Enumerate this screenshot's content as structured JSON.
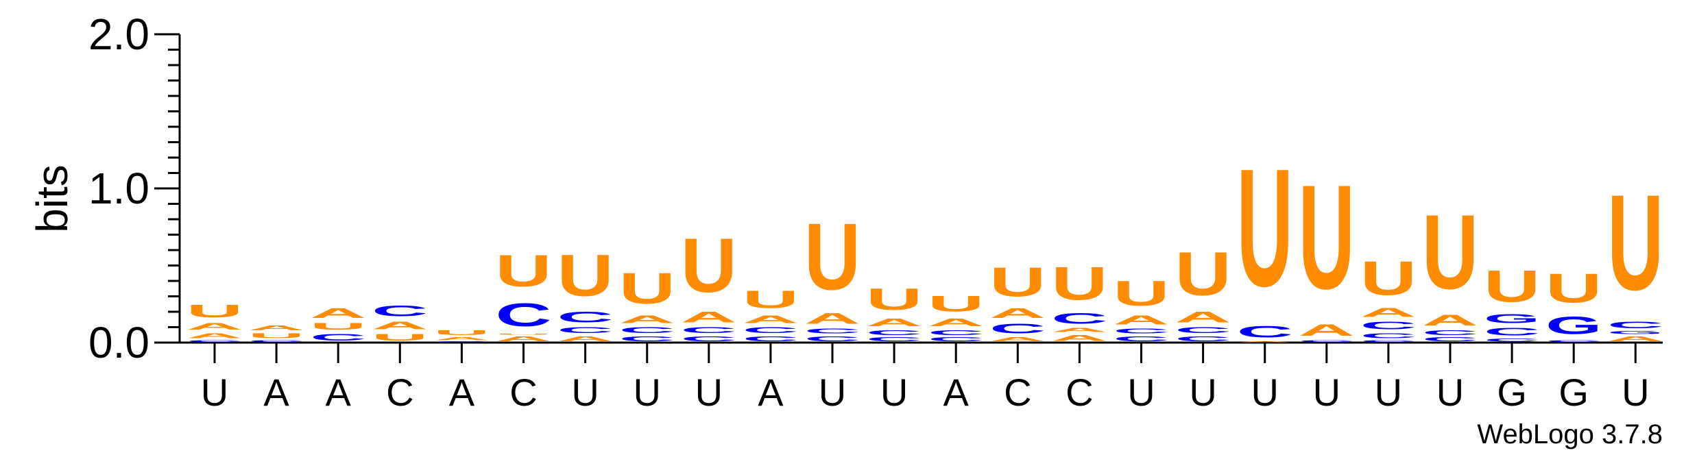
{
  "chart_data": {
    "type": "sequence-logo",
    "ylabel": "bits",
    "ylim": [
      0,
      2.0
    ],
    "yticks": [
      "0.0",
      "1.0",
      "2.0"
    ],
    "x_labels": [
      "U",
      "A",
      "A",
      "C",
      "A",
      "C",
      "U",
      "U",
      "U",
      "A",
      "U",
      "U",
      "A",
      "C",
      "C",
      "U",
      "U",
      "U",
      "U",
      "U",
      "U",
      "G",
      "G",
      "U"
    ],
    "colors": {
      "A": "#ff8c00",
      "U": "#ff8c00",
      "C": "#0000ff",
      "G": "#0000ff"
    },
    "positions": [
      {
        "stack": [
          [
            "C",
            0.02
          ],
          [
            "A",
            0.05
          ],
          [
            "A",
            0.07
          ],
          [
            "U",
            0.13
          ]
        ]
      },
      {
        "stack": [
          [
            "C",
            0.02
          ],
          [
            "U",
            0.05
          ],
          [
            "A",
            0.05
          ]
        ]
      },
      {
        "stack": [
          [
            "C",
            0.07
          ],
          [
            "U",
            0.07
          ],
          [
            "A",
            0.1
          ]
        ]
      },
      {
        "stack": [
          [
            "U",
            0.07
          ],
          [
            "A",
            0.08
          ],
          [
            "C",
            0.11
          ]
        ]
      },
      {
        "stack": [
          [
            "C",
            0.01
          ],
          [
            "A",
            0.03
          ],
          [
            "U",
            0.05
          ]
        ]
      },
      {
        "stack": [
          [
            "A",
            0.05
          ],
          [
            "U",
            0.01
          ],
          [
            "C",
            0.24
          ],
          [
            "U",
            0.33
          ]
        ]
      },
      {
        "stack": [
          [
            "A",
            0.05
          ],
          [
            "C",
            0.06
          ],
          [
            "C",
            0.11
          ],
          [
            "U",
            0.43
          ]
        ]
      },
      {
        "stack": [
          [
            "C",
            0.05
          ],
          [
            "C",
            0.06
          ],
          [
            "A",
            0.08
          ],
          [
            "U",
            0.32
          ]
        ]
      },
      {
        "stack": [
          [
            "C",
            0.05
          ],
          [
            "C",
            0.06
          ],
          [
            "A",
            0.11
          ],
          [
            "U",
            0.56
          ]
        ]
      },
      {
        "stack": [
          [
            "C",
            0.05
          ],
          [
            "C",
            0.06
          ],
          [
            "A",
            0.08
          ],
          [
            "U",
            0.18
          ]
        ]
      },
      {
        "stack": [
          [
            "C",
            0.05
          ],
          [
            "C",
            0.05
          ],
          [
            "A",
            0.11
          ],
          [
            "U",
            0.69
          ]
        ]
      },
      {
        "stack": [
          [
            "C",
            0.04
          ],
          [
            "C",
            0.05
          ],
          [
            "A",
            0.08
          ],
          [
            "U",
            0.22
          ]
        ]
      },
      {
        "stack": [
          [
            "C",
            0.04
          ],
          [
            "C",
            0.05
          ],
          [
            "A",
            0.08
          ],
          [
            "U",
            0.16
          ]
        ]
      },
      {
        "stack": [
          [
            "A",
            0.04
          ],
          [
            "C",
            0.1
          ],
          [
            "A",
            0.1
          ],
          [
            "U",
            0.3
          ]
        ]
      },
      {
        "stack": [
          [
            "A",
            0.06
          ],
          [
            "A",
            0.04
          ],
          [
            "C",
            0.11
          ],
          [
            "U",
            0.34
          ]
        ]
      },
      {
        "stack": [
          [
            "C",
            0.05
          ],
          [
            "C",
            0.05
          ],
          [
            "A",
            0.09
          ],
          [
            "U",
            0.26
          ]
        ]
      },
      {
        "stack": [
          [
            "C",
            0.05
          ],
          [
            "C",
            0.06
          ],
          [
            "A",
            0.11
          ],
          [
            "U",
            0.45
          ]
        ]
      },
      {
        "stack": [
          [
            "A",
            0.01
          ],
          [
            "C",
            0.12
          ],
          [
            "U",
            1.22
          ]
        ]
      },
      {
        "stack": [
          [
            "C",
            0.02
          ],
          [
            "A",
            0.12
          ],
          [
            "U",
            1.08
          ]
        ]
      },
      {
        "stack": [
          [
            "C",
            0.02
          ],
          [
            "C",
            0.05
          ],
          [
            "C",
            0.08
          ],
          [
            "A",
            0.09
          ],
          [
            "U",
            0.35
          ]
        ]
      },
      {
        "stack": [
          [
            "C",
            0.04
          ],
          [
            "C",
            0.05
          ],
          [
            "A",
            0.11
          ],
          [
            "U",
            0.77
          ]
        ]
      },
      {
        "stack": [
          [
            "C",
            0.03
          ],
          [
            "C",
            0.08
          ],
          [
            "G",
            0.09
          ],
          [
            "U",
            0.33
          ]
        ]
      },
      {
        "stack": [
          [
            "C",
            0.02
          ],
          [
            "G",
            0.18
          ],
          [
            "U",
            0.3
          ]
        ]
      },
      {
        "stack": [
          [
            "A",
            0.05
          ],
          [
            "G",
            0.03
          ],
          [
            "C",
            0.07
          ],
          [
            "U",
            0.99
          ]
        ]
      }
    ]
  },
  "footer": {
    "credit": "WebLogo 3.7.8"
  }
}
